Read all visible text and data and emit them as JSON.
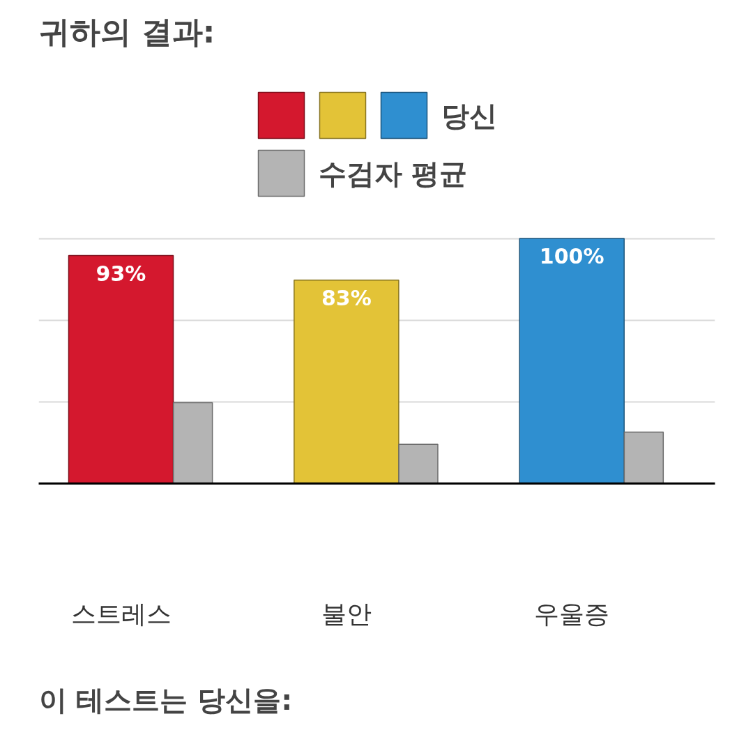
{
  "chart_data": {
    "type": "bar",
    "title": "귀하의 결과:",
    "categories": [
      "스트레스",
      "불안",
      "우울증"
    ],
    "series": [
      {
        "name": "당신",
        "colors": [
          "#d4182e",
          "#e3c337",
          "#2f8fd0"
        ],
        "values": [
          93,
          83,
          100
        ],
        "value_labels": [
          "93%",
          "83%",
          "100%"
        ]
      },
      {
        "name": "수검자 평균",
        "color": "#b4b4b4",
        "values": [
          33,
          16,
          21
        ]
      }
    ],
    "ylim": [
      0,
      101
    ],
    "yticks": [
      {
        "value": 33.3,
        "label": null
      },
      {
        "value": 66.7,
        "label": null
      },
      {
        "value": 100,
        "label": null
      }
    ],
    "grid": "y",
    "legend": "top",
    "tick_labels": "x",
    "annotations": [
      "이 테스트는 당신을:"
    ]
  }
}
